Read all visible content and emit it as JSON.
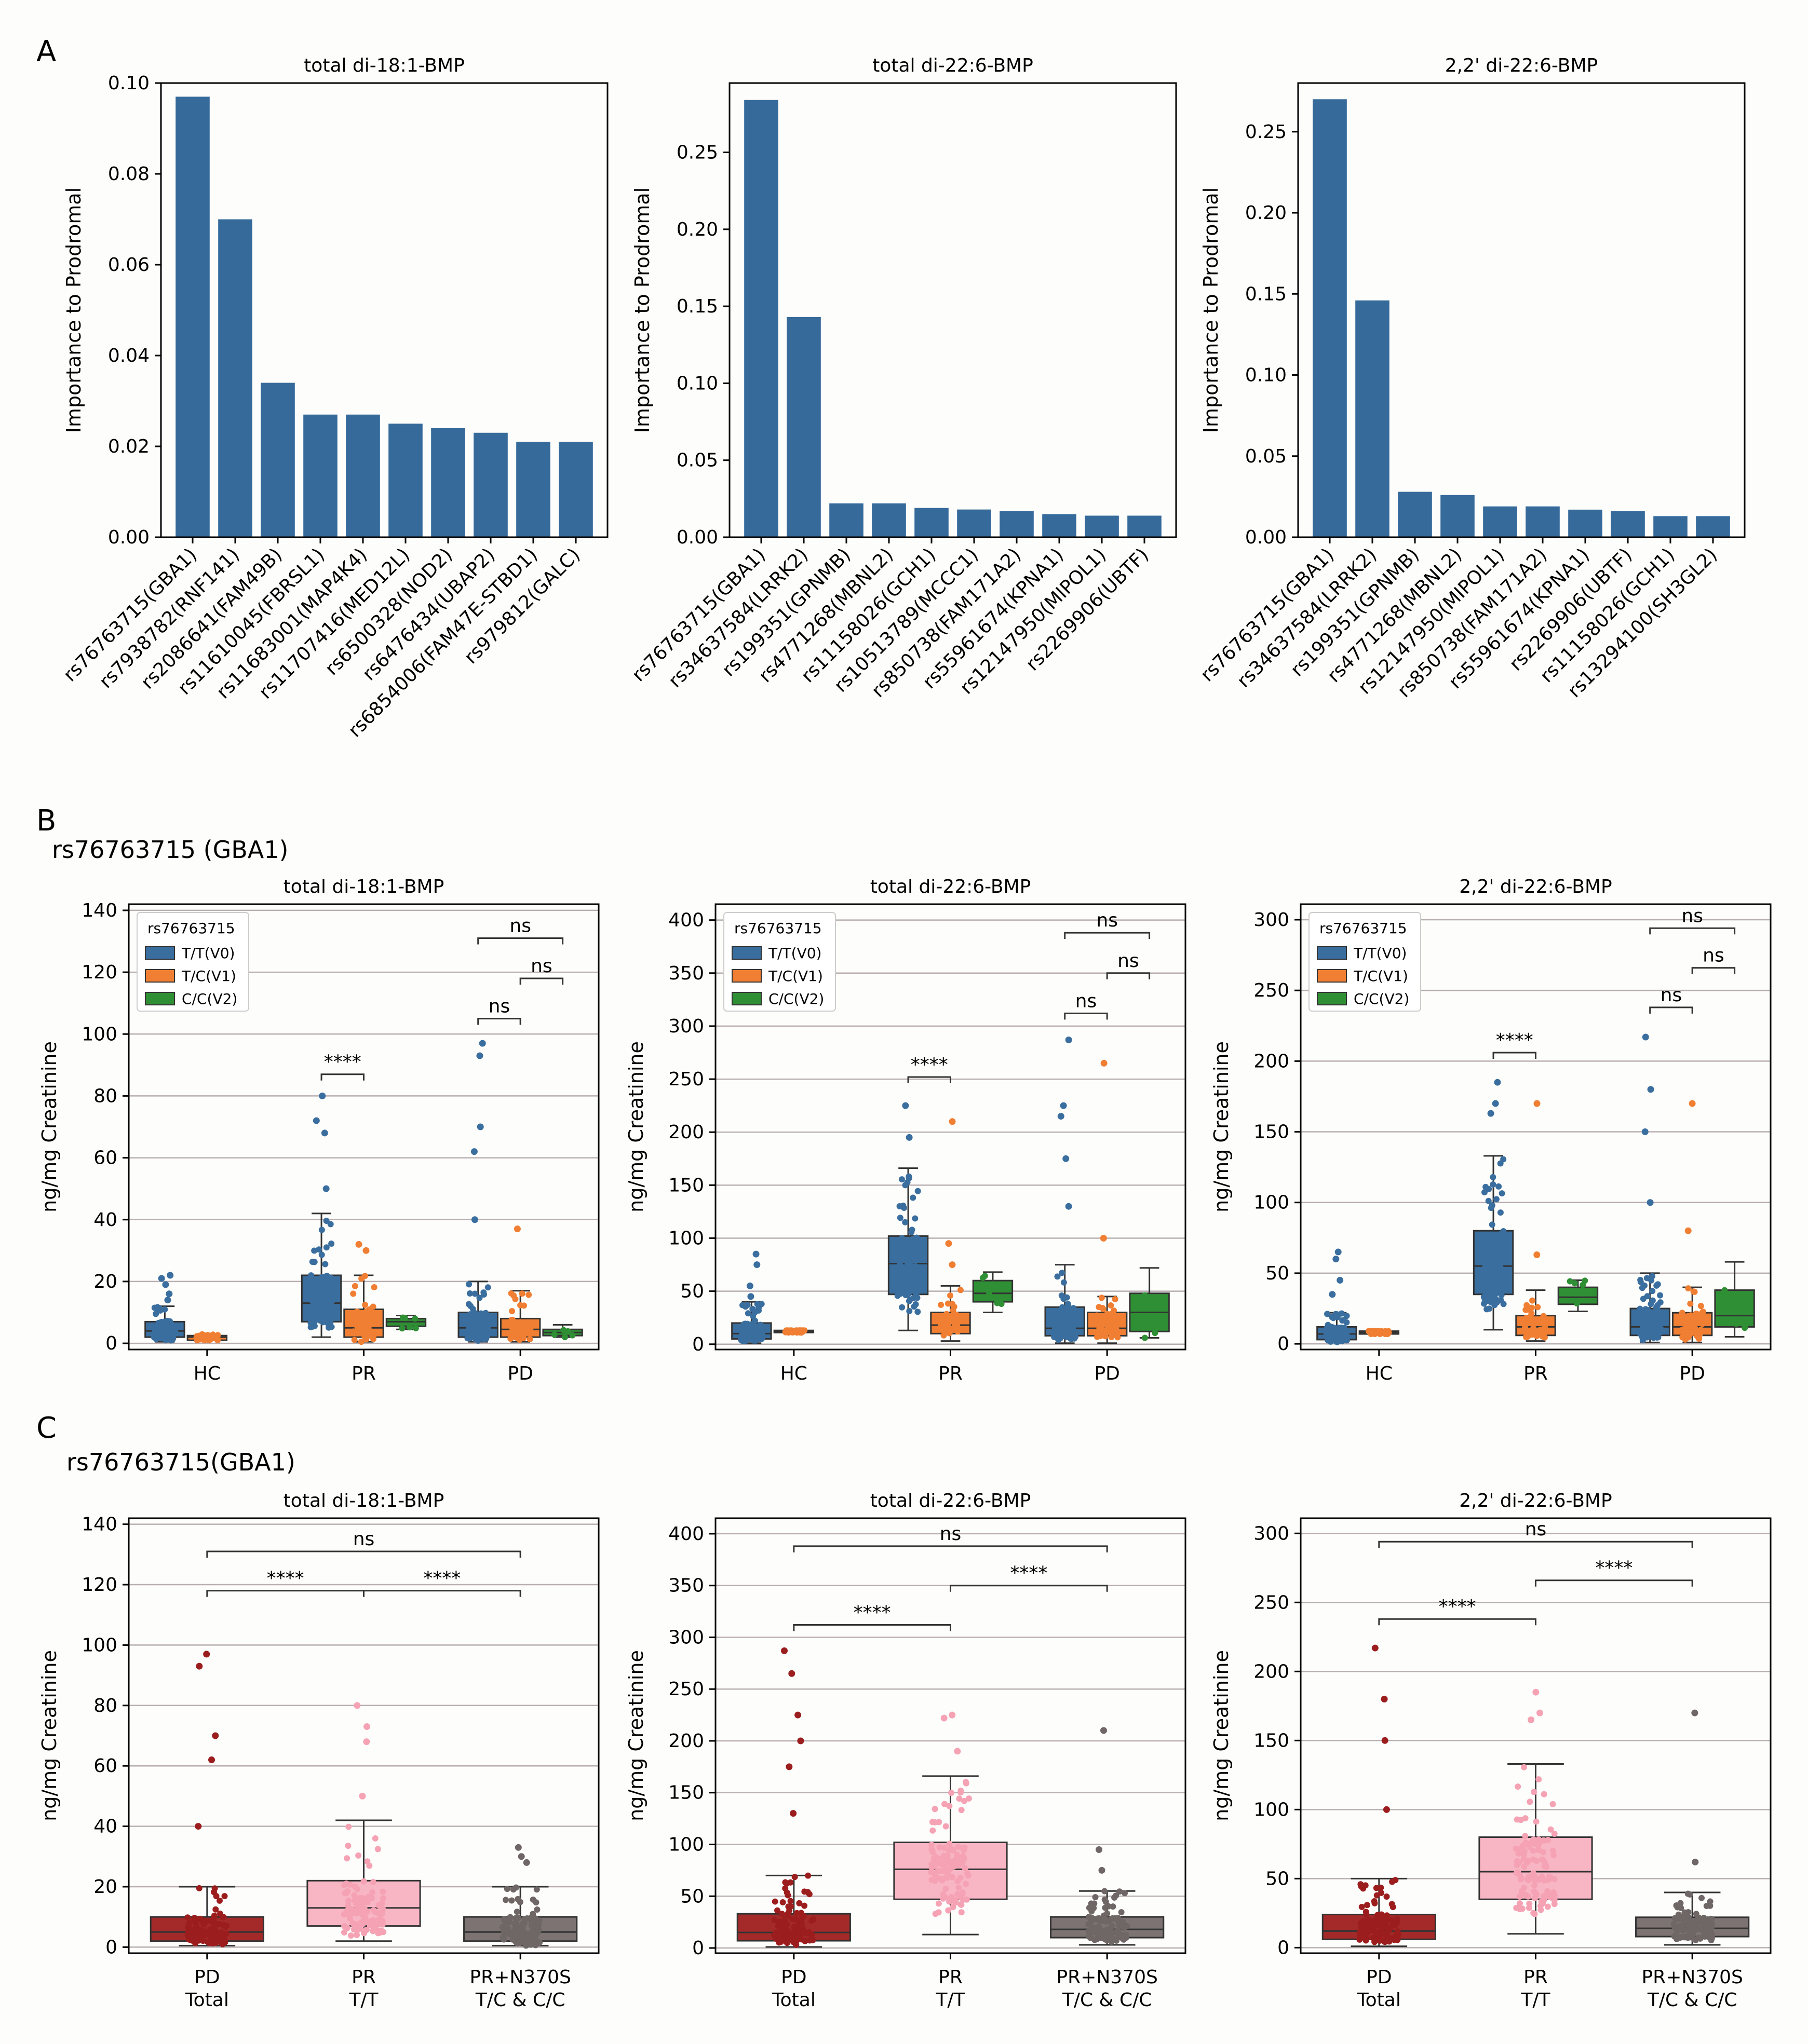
{
  "panel_letters": {
    "a": "A",
    "b": "B",
    "c": "C"
  },
  "gene_titles": {
    "b": "rs76763715 (GBA1)",
    "c": "rs76763715(GBA1)"
  },
  "colors": {
    "bar": "#366a9b",
    "tt": "#3a6e9f",
    "tc": "#f07f33",
    "cc": "#2f8f34",
    "pd": "#a42a2a",
    "pr": "#f8b6c4",
    "prn": "#7d7373",
    "pd_dot": "#9b1d1d",
    "pr_dot": "#f5a3b4",
    "prn_dot": "#6f6666"
  },
  "chart_data": [
    {
      "id": "a1",
      "type": "bar",
      "title": "total di-18:1-BMP",
      "ylabel": "Importance to Prodromal",
      "ylim": [
        0,
        0.1
      ],
      "yticks": [
        "0.00",
        "0.02",
        "0.04",
        "0.06",
        "0.08",
        "0.10"
      ],
      "yticks_values": [
        0,
        0.02,
        0.04,
        0.06,
        0.08,
        0.1
      ],
      "categories": [
        "rs76763715(GBA1)",
        "rs7938782(RNF141)",
        "rs2086641(FAM49B)",
        "rs11610045(FBRSL1)",
        "rs11683001(MAP4K4)",
        "rs11707416(MED12L)",
        "rs6500328(NOD2)",
        "rs6476434(UBAP2)",
        "rs6854006(FAM47E-STBD1)",
        "rs979812(GALC)"
      ],
      "values": [
        0.097,
        0.07,
        0.034,
        0.027,
        0.027,
        0.025,
        0.024,
        0.023,
        0.021,
        0.021
      ]
    },
    {
      "id": "a2",
      "type": "bar",
      "title": "total di-22:6-BMP",
      "ylabel": "Importance to Prodromal",
      "ylim": [
        0,
        0.295
      ],
      "yticks": [
        "0.00",
        "0.05",
        "0.10",
        "0.15",
        "0.20",
        "0.25"
      ],
      "yticks_values": [
        0,
        0.05,
        0.1,
        0.15,
        0.2,
        0.25
      ],
      "categories": [
        "rs76763715(GBA1)",
        "rs34637584(LRRK2)",
        "rs199351(GPNMB)",
        "rs4771268(MBNL2)",
        "rs11158026(GCH1)",
        "rs10513789(MCCC1)",
        "rs850738(FAM171A2)",
        "rs55961674(KPNA1)",
        "rs12147950(MIPOL1)",
        "rs2269906(UBTF)"
      ],
      "values": [
        0.284,
        0.143,
        0.022,
        0.022,
        0.019,
        0.018,
        0.017,
        0.015,
        0.014,
        0.014
      ]
    },
    {
      "id": "a3",
      "type": "bar",
      "title": "2,2' di-22:6-BMP",
      "ylabel": "Importance to Prodromal",
      "ylim": [
        0,
        0.28
      ],
      "yticks": [
        "0.00",
        "0.05",
        "0.10",
        "0.15",
        "0.20",
        "0.25"
      ],
      "yticks_values": [
        0,
        0.05,
        0.1,
        0.15,
        0.2,
        0.25
      ],
      "categories": [
        "rs76763715(GBA1)",
        "rs34637584(LRRK2)",
        "rs199351(GPNMB)",
        "rs4771268(MBNL2)",
        "rs12147950(MIPOL1)",
        "rs850738(FAM171A2)",
        "rs55961674(KPNA1)",
        "rs2269906(UBTF)",
        "rs11158026(GCH1)",
        "rs13294100(SH3GL2)"
      ],
      "values": [
        0.27,
        0.146,
        0.028,
        0.026,
        0.019,
        0.019,
        0.017,
        0.016,
        0.013,
        0.013
      ]
    },
    {
      "id": "b1",
      "type": "box",
      "title": "total di-18:1-BMP",
      "ylabel": "ng/mg Creatinine",
      "ylim": [
        -2,
        142
      ],
      "yticks": [
        0,
        20,
        40,
        60,
        80,
        100,
        120,
        140
      ],
      "groups": [
        "HC",
        "PR",
        "PD"
      ],
      "legend": {
        "title": "rs76763715",
        "entries": [
          "T/T(V0)",
          "T/C(V1)",
          "C/C(V2)"
        ]
      },
      "boxes": [
        {
          "group": 0,
          "geno": "tt",
          "q1": 2,
          "med": 4,
          "q3": 7,
          "lo": 0.5,
          "hi": 12,
          "out": [
            14,
            16,
            19,
            21,
            22
          ]
        },
        {
          "group": 0,
          "geno": "tc",
          "q1": 1,
          "med": 2,
          "q3": 2.5,
          "lo": 1,
          "hi": 3,
          "out": []
        },
        {
          "group": 1,
          "geno": "tt",
          "q1": 7,
          "med": 13,
          "q3": 22,
          "lo": 2,
          "hi": 42,
          "out": [
            50,
            68,
            72,
            80
          ]
        },
        {
          "group": 1,
          "geno": "tc",
          "q1": 2,
          "med": 5,
          "q3": 11,
          "lo": 0.5,
          "hi": 22,
          "out": [
            30,
            32
          ]
        },
        {
          "group": 1,
          "geno": "cc",
          "q1": 5.5,
          "med": 7,
          "q3": 8,
          "lo": 4.5,
          "hi": 9,
          "out": []
        },
        {
          "group": 2,
          "geno": "tt",
          "q1": 2,
          "med": 5,
          "q3": 10,
          "lo": 0.5,
          "hi": 20,
          "out": [
            40,
            62,
            70,
            93,
            97
          ]
        },
        {
          "group": 2,
          "geno": "tc",
          "q1": 2,
          "med": 4.5,
          "q3": 8,
          "lo": 0.5,
          "hi": 17,
          "out": [
            37
          ]
        },
        {
          "group": 2,
          "geno": "cc",
          "q1": 2.5,
          "med": 3.5,
          "q3": 4.5,
          "lo": 2,
          "hi": 6,
          "out": []
        }
      ],
      "brackets": [
        {
          "group": 1,
          "from": "tt",
          "to": "tc",
          "y": 87,
          "label": "****"
        },
        {
          "group": 2,
          "from": "tt",
          "to": "tc",
          "y": 105,
          "label": "ns"
        },
        {
          "group": 2,
          "from": "tc",
          "to": "cc",
          "y": 118,
          "label": "ns"
        },
        {
          "group": 2,
          "from": "tt",
          "to": "cc",
          "y": 131,
          "label": "ns"
        }
      ]
    },
    {
      "id": "b2",
      "type": "box",
      "title": "total di-22:6-BMP",
      "ylabel": "ng/mg Creatinine",
      "ylim": [
        -5,
        415
      ],
      "yticks": [
        0,
        50,
        100,
        150,
        200,
        250,
        300,
        350,
        400
      ],
      "groups": [
        "HC",
        "PR",
        "PD"
      ],
      "legend": {
        "title": "rs76763715",
        "entries": [
          "T/T(V0)",
          "T/C(V1)",
          "C/C(V2)"
        ]
      },
      "boxes": [
        {
          "group": 0,
          "geno": "tt",
          "q1": 5,
          "med": 10,
          "q3": 20,
          "lo": 1,
          "hi": 40,
          "out": [
            45,
            55,
            75,
            85
          ]
        },
        {
          "group": 0,
          "geno": "tc",
          "q1": 11,
          "med": 12,
          "q3": 13,
          "lo": 11,
          "hi": 13,
          "out": []
        },
        {
          "group": 1,
          "geno": "tt",
          "q1": 47,
          "med": 76,
          "q3": 102,
          "lo": 13,
          "hi": 166,
          "out": [
            195,
            225
          ]
        },
        {
          "group": 1,
          "geno": "tc",
          "q1": 10,
          "med": 18,
          "q3": 30,
          "lo": 3,
          "hi": 55,
          "out": [
            75,
            95,
            210
          ]
        },
        {
          "group": 1,
          "geno": "cc",
          "q1": 40,
          "med": 48,
          "q3": 60,
          "lo": 30,
          "hi": 68,
          "out": []
        },
        {
          "group": 2,
          "geno": "tt",
          "q1": 8,
          "med": 15,
          "q3": 35,
          "lo": 1,
          "hi": 75,
          "out": [
            130,
            175,
            215,
            225,
            287
          ]
        },
        {
          "group": 2,
          "geno": "tc",
          "q1": 8,
          "med": 15,
          "q3": 30,
          "lo": 1,
          "hi": 45,
          "out": [
            100,
            265
          ]
        },
        {
          "group": 2,
          "geno": "cc",
          "q1": 12,
          "med": 30,
          "q3": 48,
          "lo": 6,
          "hi": 72,
          "out": []
        }
      ],
      "brackets": [
        {
          "group": 1,
          "from": "tt",
          "to": "tc",
          "y": 252,
          "label": "****"
        },
        {
          "group": 2,
          "from": "tt",
          "to": "tc",
          "y": 312,
          "label": "ns"
        },
        {
          "group": 2,
          "from": "tc",
          "to": "cc",
          "y": 350,
          "label": "ns"
        },
        {
          "group": 2,
          "from": "tt",
          "to": "cc",
          "y": 388,
          "label": "ns"
        }
      ]
    },
    {
      "id": "b3",
      "type": "box",
      "title": "2,2' di-22:6-BMP",
      "ylabel": "ng/mg Creatinine",
      "ylim": [
        -4,
        311
      ],
      "yticks": [
        0,
        50,
        100,
        150,
        200,
        250,
        300
      ],
      "groups": [
        "HC",
        "PR",
        "PD"
      ],
      "legend": {
        "title": "rs76763715",
        "entries": [
          "T/T(V0)",
          "T/C(V1)",
          "C/C(V2)"
        ]
      },
      "boxes": [
        {
          "group": 0,
          "geno": "tt",
          "q1": 3,
          "med": 7,
          "q3": 12,
          "lo": 1,
          "hi": 22,
          "out": [
            35,
            45,
            60,
            65
          ]
        },
        {
          "group": 0,
          "geno": "tc",
          "q1": 7,
          "med": 8,
          "q3": 9,
          "lo": 7,
          "hi": 9,
          "out": []
        },
        {
          "group": 1,
          "geno": "tt",
          "q1": 35,
          "med": 55,
          "q3": 80,
          "lo": 10,
          "hi": 133,
          "out": [
            163,
            170,
            185
          ]
        },
        {
          "group": 1,
          "geno": "tc",
          "q1": 6,
          "med": 12,
          "q3": 20,
          "lo": 2,
          "hi": 38,
          "out": [
            63,
            170
          ]
        },
        {
          "group": 1,
          "geno": "cc",
          "q1": 28,
          "med": 33,
          "q3": 40,
          "lo": 23,
          "hi": 45,
          "out": []
        },
        {
          "group": 2,
          "geno": "tt",
          "q1": 6,
          "med": 12,
          "q3": 25,
          "lo": 1,
          "hi": 50,
          "out": [
            100,
            150,
            180,
            217
          ]
        },
        {
          "group": 2,
          "geno": "tc",
          "q1": 6,
          "med": 12,
          "q3": 22,
          "lo": 1,
          "hi": 40,
          "out": [
            80,
            170
          ]
        },
        {
          "group": 2,
          "geno": "cc",
          "q1": 12,
          "med": 20,
          "q3": 38,
          "lo": 5,
          "hi": 58,
          "out": []
        }
      ],
      "brackets": [
        {
          "group": 1,
          "from": "tt",
          "to": "tc",
          "y": 206,
          "label": "****"
        },
        {
          "group": 2,
          "from": "tt",
          "to": "tc",
          "y": 238,
          "label": "ns"
        },
        {
          "group": 2,
          "from": "tc",
          "to": "cc",
          "y": 266,
          "label": "ns"
        },
        {
          "group": 2,
          "from": "tt",
          "to": "cc",
          "y": 294,
          "label": "ns"
        }
      ]
    },
    {
      "id": "c1",
      "type": "box",
      "title": "total di-18:1-BMP",
      "ylabel": "ng/mg Creatinine",
      "ylim": [
        -2,
        142
      ],
      "yticks": [
        0,
        20,
        40,
        60,
        80,
        100,
        120,
        140
      ],
      "categories": [
        "PD\nTotal",
        "PR\nT/T",
        "PR+N370S\nT/C & C/C"
      ],
      "boxes": [
        {
          "group": 0,
          "col": "pd",
          "q1": 2,
          "med": 5,
          "q3": 10,
          "lo": 0.5,
          "hi": 20,
          "out": [
            40,
            62,
            70,
            93,
            97
          ]
        },
        {
          "group": 1,
          "col": "pr",
          "q1": 7,
          "med": 13,
          "q3": 22,
          "lo": 2,
          "hi": 42,
          "out": [
            50,
            68,
            73,
            80
          ]
        },
        {
          "group": 2,
          "col": "prn",
          "q1": 2,
          "med": 5,
          "q3": 10,
          "lo": 0.5,
          "hi": 20,
          "out": [
            28,
            30,
            33
          ]
        }
      ],
      "brackets": [
        {
          "from": 0,
          "to": 1,
          "y": 118,
          "label": "****"
        },
        {
          "from": 1,
          "to": 2,
          "y": 118,
          "label": "****"
        },
        {
          "from": 0,
          "to": 2,
          "y": 131,
          "label": "ns"
        }
      ]
    },
    {
      "id": "c2",
      "type": "box",
      "title": "total di-22:6-BMP",
      "ylabel": "ng/mg Creatinine",
      "ylim": [
        -5,
        415
      ],
      "yticks": [
        0,
        50,
        100,
        150,
        200,
        250,
        300,
        350,
        400
      ],
      "categories": [
        "PD\nTotal",
        "PR\nT/T",
        "PR+N370S\nT/C & C/C"
      ],
      "boxes": [
        {
          "group": 0,
          "col": "pd",
          "q1": 7,
          "med": 15,
          "q3": 33,
          "lo": 1,
          "hi": 70,
          "out": [
            130,
            175,
            200,
            225,
            265,
            287
          ]
        },
        {
          "group": 1,
          "col": "pr",
          "q1": 47,
          "med": 76,
          "q3": 102,
          "lo": 13,
          "hi": 166,
          "out": [
            190,
            222,
            225
          ]
        },
        {
          "group": 2,
          "col": "prn",
          "q1": 10,
          "med": 18,
          "q3": 30,
          "lo": 3,
          "hi": 55,
          "out": [
            75,
            95,
            210
          ]
        }
      ],
      "brackets": [
        {
          "from": 0,
          "to": 1,
          "y": 312,
          "label": "****"
        },
        {
          "from": 1,
          "to": 2,
          "y": 350,
          "label": "****"
        },
        {
          "from": 0,
          "to": 2,
          "y": 388,
          "label": "ns"
        }
      ]
    },
    {
      "id": "c3",
      "type": "box",
      "title": "2,2' di-22:6-BMP",
      "ylabel": "ng/mg Creatinine",
      "ylim": [
        -4,
        311
      ],
      "yticks": [
        0,
        50,
        100,
        150,
        200,
        250,
        300
      ],
      "categories": [
        "PD\nTotal",
        "PR\nT/T",
        "PR+N370S\nT/C & C/C"
      ],
      "boxes": [
        {
          "group": 0,
          "col": "pd",
          "q1": 6,
          "med": 12,
          "q3": 24,
          "lo": 1,
          "hi": 50,
          "out": [
            100,
            150,
            180,
            217
          ]
        },
        {
          "group": 1,
          "col": "pr",
          "q1": 35,
          "med": 55,
          "q3": 80,
          "lo": 10,
          "hi": 133,
          "out": [
            165,
            170,
            185
          ]
        },
        {
          "group": 2,
          "col": "prn",
          "q1": 8,
          "med": 14,
          "q3": 22,
          "lo": 2,
          "hi": 40,
          "out": [
            62,
            170
          ]
        }
      ],
      "brackets": [
        {
          "from": 0,
          "to": 1,
          "y": 238,
          "label": "****"
        },
        {
          "from": 1,
          "to": 2,
          "y": 266,
          "label": "****"
        },
        {
          "from": 0,
          "to": 2,
          "y": 294,
          "label": "ns"
        }
      ]
    }
  ]
}
